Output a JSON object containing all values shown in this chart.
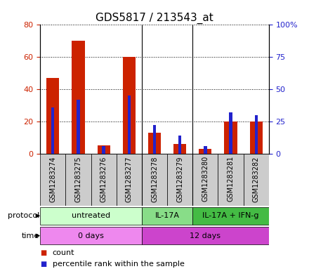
{
  "title": "GDS5817 / 213543_at",
  "samples": [
    "GSM1283274",
    "GSM1283275",
    "GSM1283276",
    "GSM1283277",
    "GSM1283278",
    "GSM1283279",
    "GSM1283280",
    "GSM1283281",
    "GSM1283282"
  ],
  "count_values": [
    47,
    70,
    5,
    60,
    13,
    6,
    3,
    20,
    20
  ],
  "percentile_values": [
    36,
    42,
    6,
    45,
    22,
    14,
    6,
    32,
    30
  ],
  "protocol_groups": [
    {
      "label": "untreated",
      "start": 0,
      "end": 4,
      "color": "#ccffcc"
    },
    {
      "label": "IL-17A",
      "start": 4,
      "end": 6,
      "color": "#88dd88"
    },
    {
      "label": "IL-17A + IFN-g",
      "start": 6,
      "end": 9,
      "color": "#44bb44"
    }
  ],
  "time_groups": [
    {
      "label": "0 days",
      "start": 0,
      "end": 4,
      "color": "#ee88ee"
    },
    {
      "label": "12 days",
      "start": 4,
      "end": 9,
      "color": "#cc44cc"
    }
  ],
  "ylim_left": [
    0,
    80
  ],
  "ylim_right": [
    0,
    100
  ],
  "yticks_left": [
    0,
    20,
    40,
    60,
    80
  ],
  "ytick_labels_left": [
    "0",
    "20",
    "40",
    "60",
    "80"
  ],
  "yticks_right": [
    0,
    25,
    50,
    75,
    100
  ],
  "ytick_labels_right": [
    "0",
    "25",
    "50",
    "75",
    "100%"
  ],
  "bar_color_red": "#cc2200",
  "bar_color_blue": "#2222cc",
  "bg_color": "#ffffff",
  "grid_color": "#000000",
  "title_fontsize": 11,
  "tick_fontsize": 8,
  "legend_fontsize": 8,
  "sample_box_color": "#cccccc"
}
